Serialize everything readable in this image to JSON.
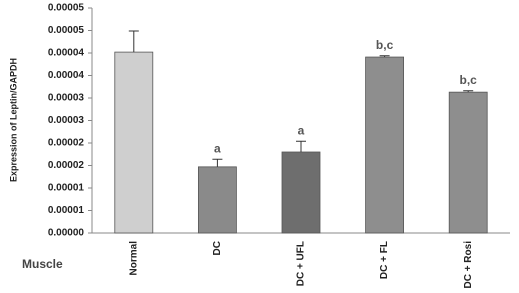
{
  "chart_data": {
    "type": "bar",
    "ylabel": "Expression of Leptin/GAPDH",
    "xlabel": "Muscle",
    "categories": [
      "Normal",
      "DC",
      "DC + UFL",
      "DC + FL",
      "DC + Rosi"
    ],
    "values": [
      4.02e-05,
      1.47e-05,
      1.8e-05,
      3.91e-05,
      3.13e-05
    ],
    "errors": [
      4.7e-06,
      1.7e-06,
      2.4e-06,
      3e-07,
      3e-07
    ],
    "annotations": [
      null,
      "a",
      "a",
      "b,c",
      "b,c"
    ],
    "colors": [
      "#cfcfcf",
      "#8a8a8a",
      "#6e6e6e",
      "#8e8e8e",
      "#8e8e8e"
    ],
    "ylim": [
      0,
      5e-05
    ],
    "yticks": [
      {
        "value": 0,
        "label": "0.00000"
      },
      {
        "value": 5e-06,
        "label": "0.00001"
      },
      {
        "value": 1e-05,
        "label": "0.00001"
      },
      {
        "value": 1.5e-05,
        "label": "0.00002"
      },
      {
        "value": 2e-05,
        "label": "0.00002"
      },
      {
        "value": 2.5e-05,
        "label": "0.00003"
      },
      {
        "value": 3e-05,
        "label": "0.00003"
      },
      {
        "value": 3.5e-05,
        "label": "0.00004"
      },
      {
        "value": 4e-05,
        "label": "0.00004"
      },
      {
        "value": 4.5e-05,
        "label": "0.00005"
      },
      {
        "value": 5e-05,
        "label": "0.00005"
      }
    ]
  }
}
